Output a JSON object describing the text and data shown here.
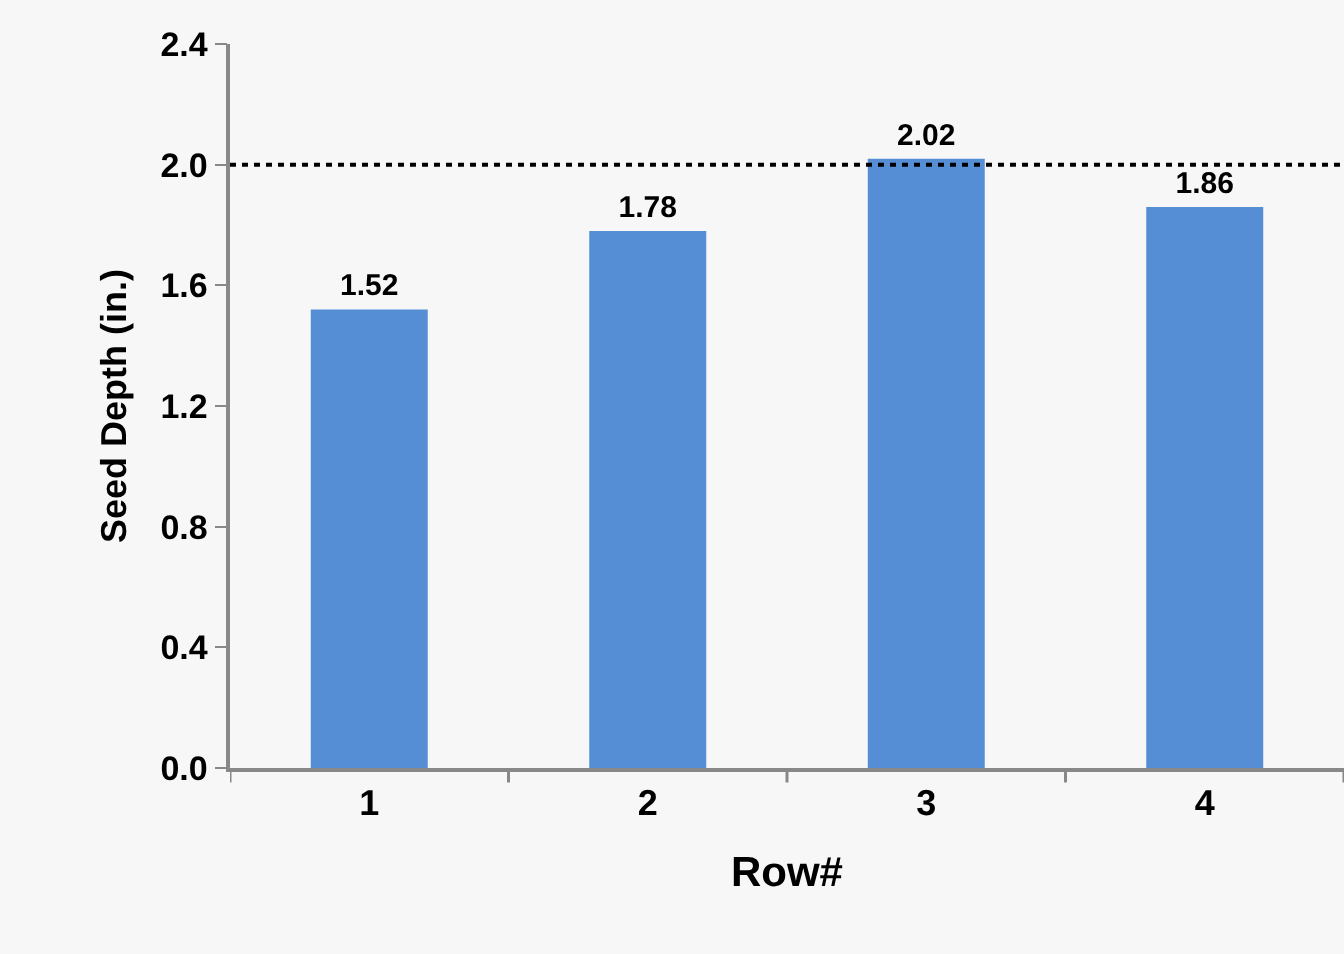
{
  "chart_data": {
    "type": "bar",
    "xlabel": "Row#",
    "ylabel": "Seed Depth (in.)",
    "categories": [
      "1",
      "2",
      "3",
      "4"
    ],
    "values": [
      1.52,
      1.78,
      2.02,
      1.86
    ],
    "color": "#558ed5",
    "data_labels": true,
    "ylim": [
      0,
      2.4
    ],
    "yticks": [
      {
        "value": 0,
        "label": "0.0"
      },
      {
        "value": 0.4,
        "label": "0.4"
      },
      {
        "value": 0.8,
        "label": "0.8"
      },
      {
        "value": 1.2,
        "label": "1.2"
      },
      {
        "value": 1.6,
        "label": "1.6"
      },
      {
        "value": 2.0,
        "label": "2.0"
      },
      {
        "value": 2.4,
        "label": "2.4"
      }
    ],
    "ref_lines": [
      {
        "axis": "y",
        "value": 2.0,
        "color": "#000000",
        "line_style": "dotted"
      }
    ],
    "grid": false,
    "legend": false
  }
}
